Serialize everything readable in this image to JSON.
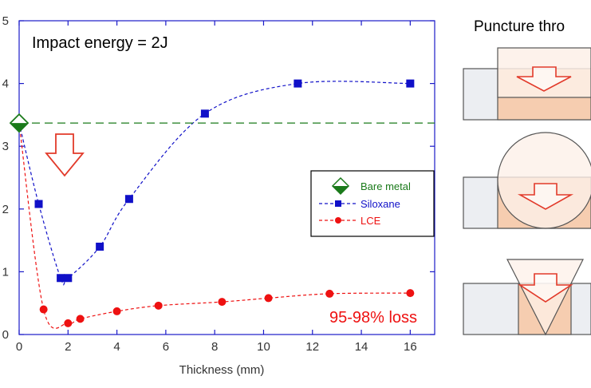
{
  "chart_data": {
    "type": "line",
    "title": "",
    "xlabel": "Thickness (mm)",
    "ylabel": "",
    "xlim": [
      0,
      17
    ],
    "ylim": [
      0,
      5
    ],
    "x_ticks": [
      0,
      2,
      4,
      6,
      8,
      10,
      12,
      14,
      16
    ],
    "y_ticks": [
      0,
      1,
      2,
      3,
      4,
      5
    ],
    "annotation": "Impact energy = 2J",
    "loss_label": "95-98% loss",
    "legend_position": "right",
    "series": [
      {
        "name": "Bare metal",
        "color": "#1a7a1a",
        "marker": "diamond",
        "line": "dashed",
        "x": [
          0,
          17
        ],
        "y": [
          3.37,
          3.37
        ]
      },
      {
        "name": "Siloxane",
        "color": "#1010c8",
        "marker": "square",
        "line": "dashed",
        "x": [
          0,
          0.8,
          1.7,
          2.0,
          3.3,
          4.5,
          7.6,
          11.4,
          16
        ],
        "y": [
          3.37,
          2.08,
          0.9,
          0.9,
          1.4,
          2.16,
          3.52,
          4.0,
          4.0
        ]
      },
      {
        "name": "LCE",
        "color": "#ee1111",
        "marker": "circle",
        "line": "dashed",
        "x": [
          0,
          1.0,
          2.0,
          2.5,
          4.0,
          5.7,
          8.3,
          10.2,
          12.7,
          16
        ],
        "y": [
          3.37,
          0.4,
          0.18,
          0.25,
          0.37,
          0.46,
          0.52,
          0.58,
          0.65,
          0.66
        ]
      }
    ]
  },
  "side_panel": {
    "title": "Puncture thro",
    "diagrams": [
      "flat-punch",
      "spherical-punch",
      "conical-punch"
    ]
  },
  "colors": {
    "bare_metal": "#1a7a1a",
    "siloxane": "#1010c8",
    "lce": "#ee1111",
    "arrow": "#e23a2a",
    "layer_fill": "#f6cdb0",
    "block_fill": "#eceef2"
  }
}
